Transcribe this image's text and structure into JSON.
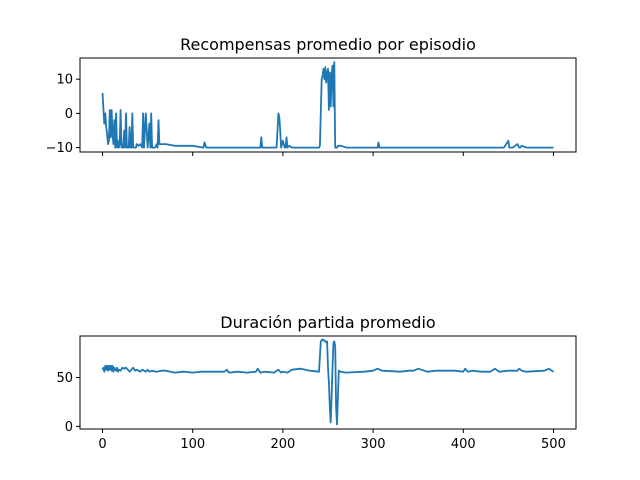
{
  "chart_data": [
    {
      "type": "line",
      "title": "Recompensas promedio por episodio",
      "xlabel": "",
      "ylabel": "",
      "xlim": [
        -25,
        525
      ],
      "ylim": [
        -11.3,
        16.2
      ],
      "xticks": [
        0,
        100,
        200,
        300,
        400,
        500
      ],
      "xticklabels": [
        "",
        "",
        "",
        "",
        "",
        ""
      ],
      "yticks": [
        10,
        0,
        -10
      ],
      "yticklabels": [
        "10",
        "0",
        "−10"
      ],
      "grid": false,
      "series": [
        {
          "color": "#1f77b4",
          "x": [
            0,
            2,
            3,
            4,
            5,
            6,
            7,
            8,
            9,
            10,
            11,
            12,
            13,
            14,
            15,
            16,
            17,
            18,
            19,
            20,
            21,
            22,
            23,
            24,
            25,
            26,
            27,
            28,
            29,
            30,
            31,
            32,
            33,
            34,
            35,
            36,
            37,
            38,
            40,
            42,
            44,
            45,
            46,
            48,
            50,
            52,
            53,
            54,
            55,
            56,
            58,
            60,
            61,
            62,
            63,
            64,
            66,
            70,
            80,
            100,
            112,
            113,
            115,
            130,
            150,
            170,
            175,
            176,
            177,
            178,
            180,
            182,
            185,
            190,
            193,
            194,
            195,
            196,
            197,
            198,
            200,
            202,
            203,
            204,
            205,
            207,
            210,
            220,
            240,
            241,
            243,
            244,
            245,
            246,
            247,
            248,
            249,
            250,
            251,
            252,
            253,
            254,
            255,
            256,
            257,
            258,
            259,
            260,
            261,
            262,
            265,
            270,
            275,
            280,
            305,
            306,
            307,
            310,
            320,
            340,
            360,
            380,
            400,
            420,
            440,
            445,
            450,
            451,
            452,
            455,
            460,
            462,
            463,
            465,
            470,
            480,
            500
          ],
          "y": [
            6,
            -3,
            0,
            -4,
            -6,
            -9,
            -8,
            1,
            -7,
            1,
            -6,
            -9,
            -2,
            -10,
            0,
            -10,
            -8,
            -10,
            -9,
            1,
            -10,
            -9,
            -10,
            -5,
            -10,
            0,
            -10,
            -10,
            -10,
            -4,
            -10,
            -10,
            0,
            -10,
            -10,
            -10,
            -10,
            -9,
            -9.5,
            -9,
            -10,
            0,
            -10,
            0,
            -10,
            -3,
            -10,
            0,
            -10,
            -10,
            -10,
            -9,
            -10,
            -2,
            -9,
            -9,
            -9,
            -9,
            -9.5,
            -9.5,
            -10,
            -8.5,
            -10,
            -10,
            -10,
            -10,
            -10,
            -7,
            -10,
            -10,
            -10,
            -10,
            -10,
            -10,
            -10,
            -5,
            0,
            -1,
            -5,
            -10,
            -8,
            -10,
            -10,
            -7,
            -10,
            -9.5,
            -10,
            -10,
            -10,
            -9.5,
            10,
            11,
            13,
            10,
            13.5,
            9,
            12,
            13,
            1,
            12,
            2,
            11,
            14,
            2,
            15,
            -10,
            -10,
            -10,
            -9.5,
            -9.5,
            -9.5,
            -10,
            -10,
            -10,
            -10,
            -8.5,
            -10,
            -10,
            -10,
            -10,
            -10,
            -10,
            -10,
            -10,
            -10,
            -10,
            -8,
            -10,
            -10,
            -10,
            -9,
            -10,
            -10,
            -9.5,
            -10,
            -10,
            -10
          ]
        }
      ]
    },
    {
      "type": "line",
      "title": "Duración partida promedio",
      "xlabel": "",
      "ylabel": "",
      "xlim": [
        -25,
        525
      ],
      "ylim": [
        -2.7,
        92.5
      ],
      "xticks": [
        0,
        100,
        200,
        300,
        400,
        500
      ],
      "xticklabels": [
        "0",
        "100",
        "200",
        "300",
        "400",
        "500"
      ],
      "yticks": [
        50,
        0
      ],
      "yticklabels": [
        "50",
        "0"
      ],
      "grid": false,
      "series": [
        {
          "color": "#1f77b4",
          "x": [
            0,
            1,
            2,
            3,
            4,
            5,
            6,
            7,
            8,
            9,
            10,
            11,
            12,
            13,
            14,
            15,
            16,
            17,
            18,
            20,
            22,
            24,
            26,
            28,
            30,
            32,
            34,
            36,
            38,
            40,
            42,
            44,
            46,
            48,
            50,
            52,
            55,
            60,
            65,
            70,
            80,
            90,
            100,
            110,
            120,
            135,
            138,
            140,
            150,
            160,
            170,
            172,
            175,
            180,
            190,
            195,
            198,
            200,
            205,
            210,
            220,
            230,
            240,
            242,
            244,
            245,
            246,
            247,
            248,
            249,
            250,
            251,
            252,
            253,
            254,
            255,
            256,
            257,
            258,
            259,
            260,
            262,
            264,
            270,
            290,
            300,
            305,
            310,
            330,
            340,
            345,
            350,
            360,
            370,
            380,
            390,
            400,
            402,
            405,
            410,
            420,
            430,
            435,
            440,
            450,
            460,
            462,
            465,
            470,
            490,
            495,
            500
          ],
          "y": [
            58,
            60,
            56,
            62,
            58,
            62,
            57,
            62,
            58,
            62,
            57,
            62,
            56,
            60,
            58,
            57,
            60,
            56,
            58,
            57,
            60,
            59,
            60,
            58,
            56,
            58,
            60,
            57,
            58,
            57,
            56,
            58,
            57,
            56,
            58,
            56,
            57,
            56,
            57,
            57,
            55,
            56,
            55,
            56,
            56,
            56,
            58,
            55,
            56,
            55,
            56,
            59,
            55,
            56,
            55,
            58,
            55,
            56,
            55,
            58,
            59,
            57,
            56,
            87,
            89,
            88,
            88,
            87,
            86,
            87,
            60,
            45,
            20,
            4,
            30,
            60,
            85,
            87,
            82,
            20,
            2,
            57,
            56,
            55,
            56,
            57,
            59,
            57,
            56,
            57,
            57,
            59,
            56,
            57,
            57,
            57,
            56,
            59,
            56,
            57,
            56,
            56,
            59,
            56,
            57,
            57,
            59,
            57,
            56,
            57,
            59,
            56
          ]
        }
      ]
    }
  ]
}
